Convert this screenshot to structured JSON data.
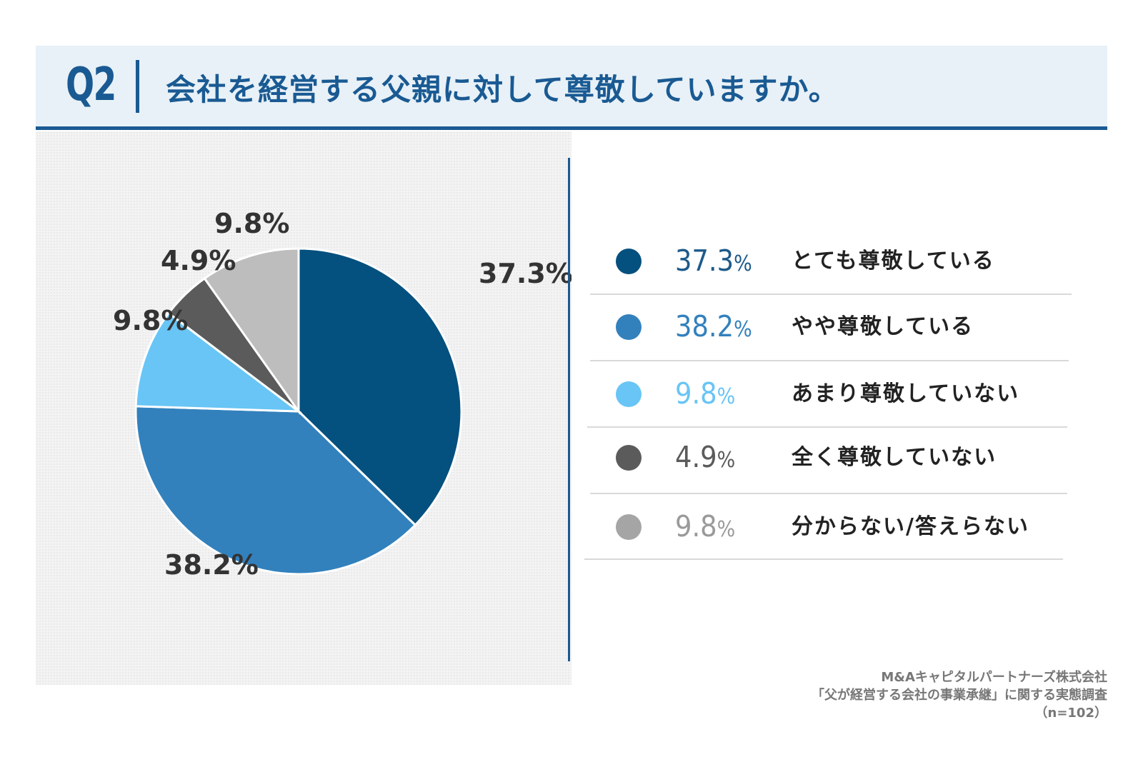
{
  "header": {
    "question_number": "Q2",
    "title": "会社を経営する父親に対して尊敬していますか。"
  },
  "chart_data": {
    "type": "pie",
    "title": "会社を経営する父親に対して尊敬していますか。",
    "start": "12 o'clock",
    "direction": "clockwise",
    "slices": [
      {
        "label": "とても尊敬している",
        "value": 37.3,
        "display": "37.3%",
        "color": "#04507e"
      },
      {
        "label": "やや尊敬している",
        "value": 38.2,
        "display": "38.2%",
        "color": "#3281bd"
      },
      {
        "label": "あまり尊敬していない",
        "value": 9.8,
        "display": "9.8%",
        "color": "#68c5f5"
      },
      {
        "label": "全く尊敬していない",
        "value": 4.9,
        "display": "4.9%",
        "color": "#5b5b5b"
      },
      {
        "label": "分からない/答えらない",
        "value": 9.8,
        "display": "9.8%",
        "color": "#bdbdbd"
      }
    ]
  },
  "legend": {
    "items": [
      {
        "value": "37.3",
        "sign": "%",
        "label": "とても尊敬している",
        "color": "#04507e"
      },
      {
        "value": "38.2",
        "sign": "%",
        "label": "やや尊敬している",
        "color": "#3281bd"
      },
      {
        "value": "9.8",
        "sign": "%",
        "label": "あまり尊敬していない",
        "color": "#68c5f5"
      },
      {
        "value": "4.9",
        "sign": "%",
        "label": "全く尊敬していない",
        "color": "#5b5b5b"
      },
      {
        "value": "9.8",
        "sign": "%",
        "label": "分からない/答えらない",
        "color": "#a5a5a5"
      }
    ]
  },
  "source": {
    "company": "M&Aキャピタルパートナーズ株式会社",
    "survey": "「父が経営する会社の事業承継」に関する実態調査",
    "sample": "（n=102）"
  }
}
